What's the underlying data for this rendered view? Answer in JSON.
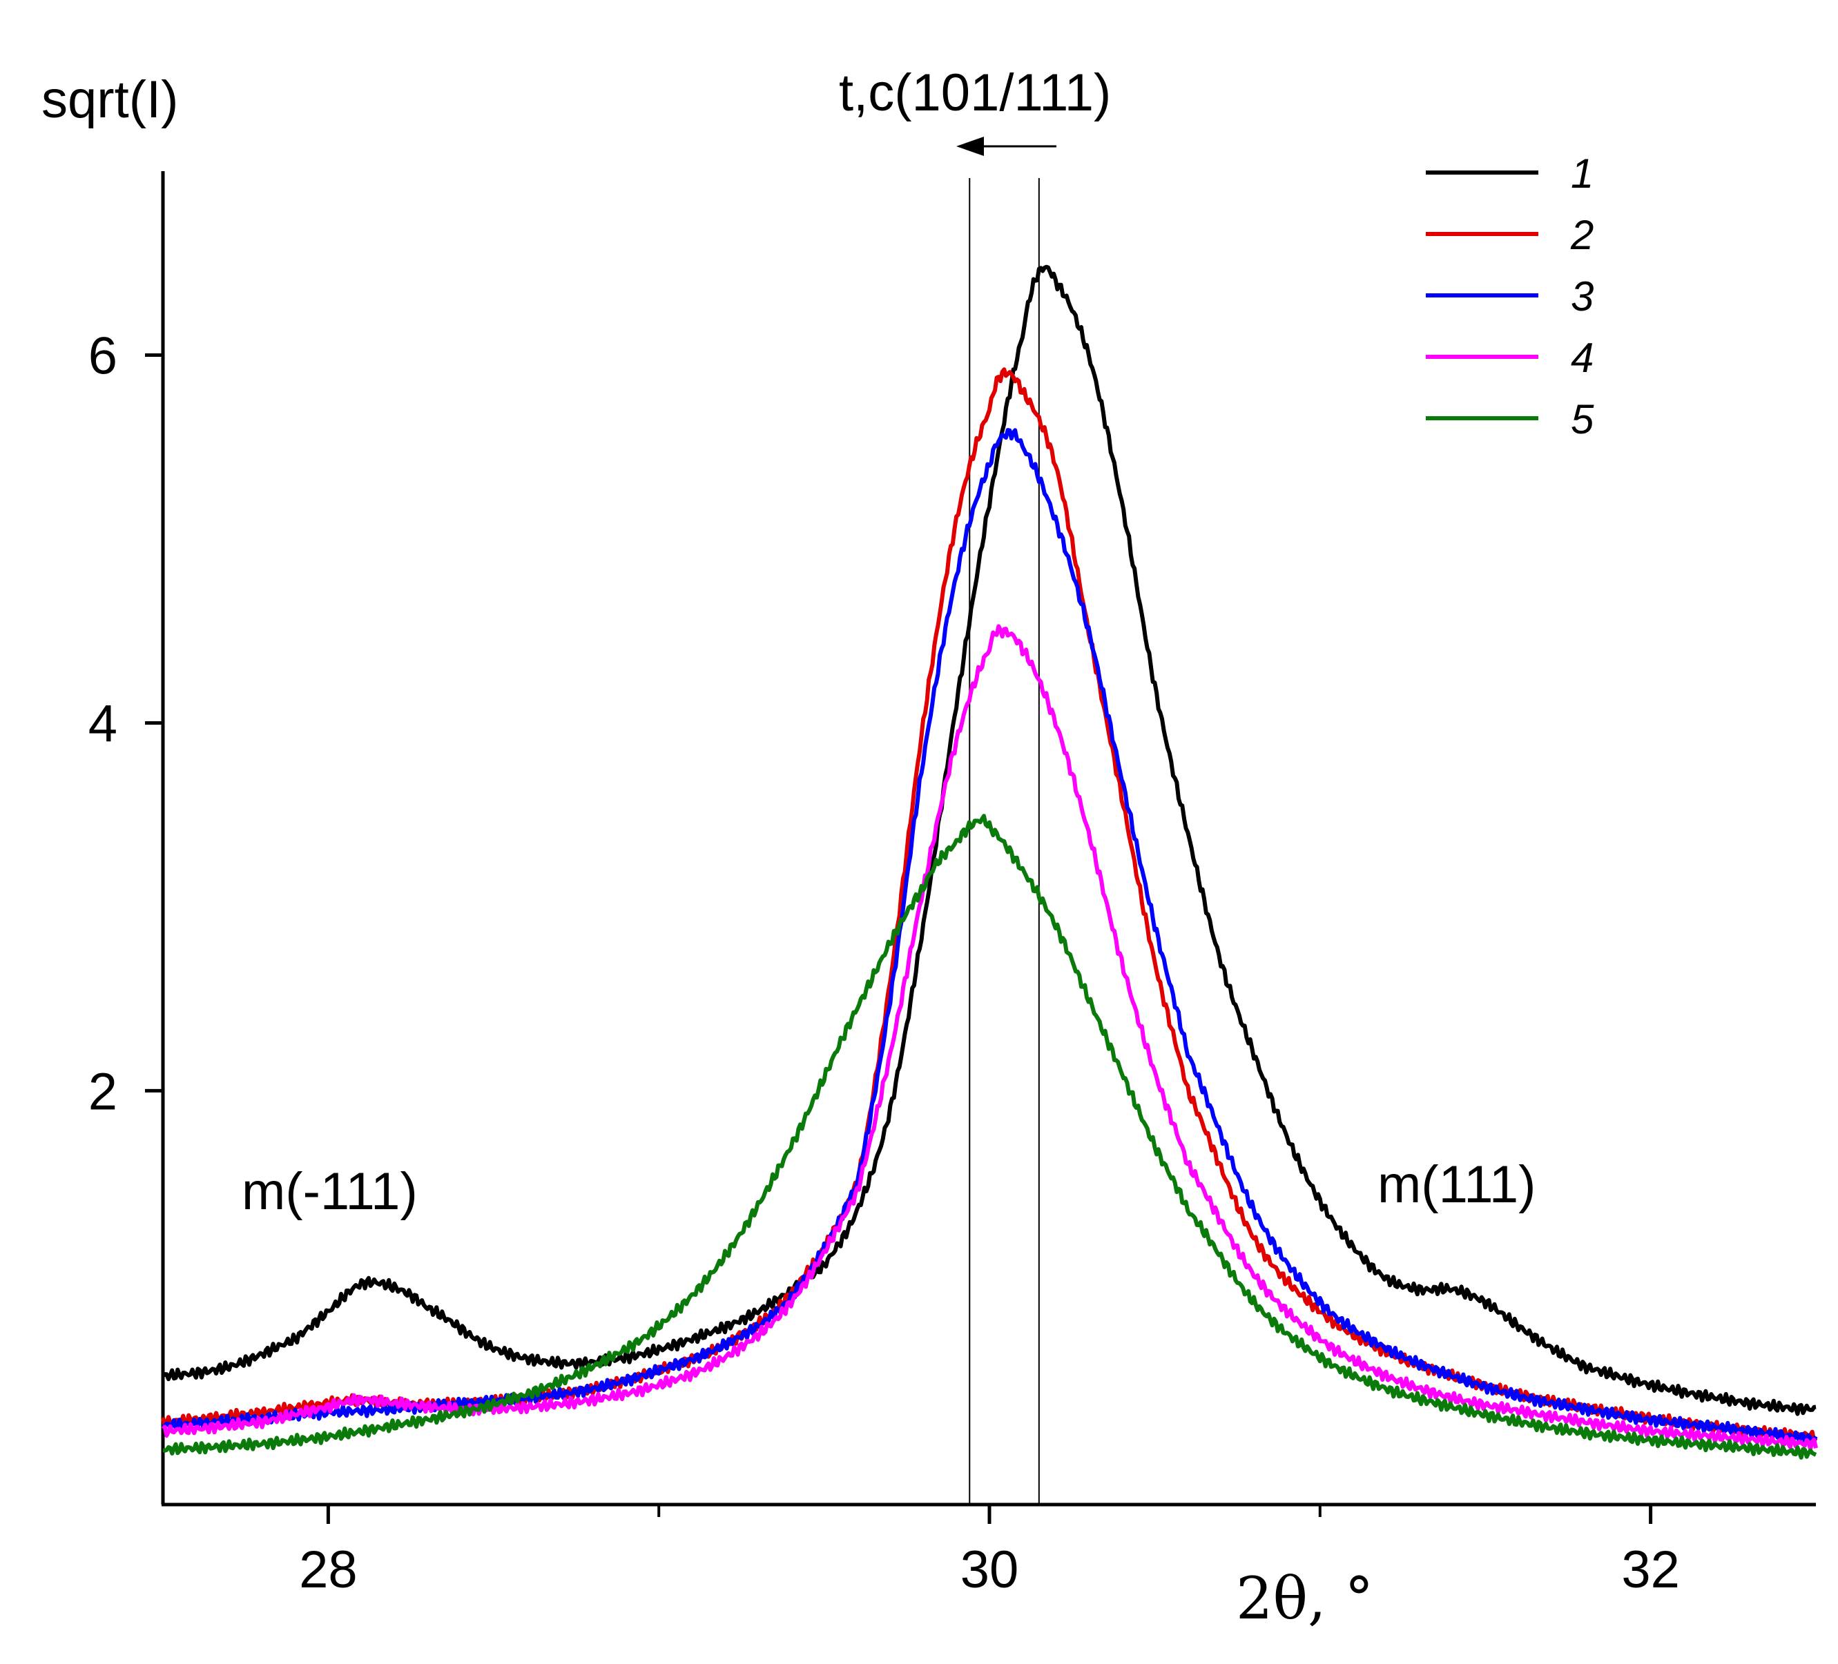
{
  "chart_data": {
    "type": "line",
    "title": "",
    "xlabel": "2θ, °",
    "ylabel": "sqrt(I)",
    "xlim": [
      27.5,
      32.5
    ],
    "ylim": [
      -0.25,
      7.0
    ],
    "xticks_major": [
      28,
      30,
      32
    ],
    "xticks_minor": [
      29,
      31
    ],
    "yticks": [
      2,
      4,
      6
    ],
    "grid": false,
    "legend_position": "top-right",
    "series": [
      {
        "name": "1",
        "color": "#000000",
        "peak_x": 30.15,
        "peak_y": 6.45,
        "x": [
          27.5,
          27.7,
          27.9,
          28.0,
          28.1,
          28.2,
          28.3,
          28.5,
          28.7,
          28.9,
          29.1,
          29.3,
          29.5,
          29.6,
          29.7,
          29.8,
          29.9,
          30.0,
          30.1,
          30.15,
          30.2,
          30.3,
          30.4,
          30.5,
          30.6,
          30.7,
          30.8,
          30.9,
          31.0,
          31.1,
          31.2,
          31.3,
          31.4,
          31.5,
          31.6,
          31.7,
          31.8,
          32.0,
          32.2,
          32.4,
          32.5
        ],
        "values": [
          0.45,
          0.5,
          0.65,
          0.8,
          0.95,
          0.93,
          0.82,
          0.6,
          0.52,
          0.55,
          0.65,
          0.8,
          1.05,
          1.35,
          1.9,
          2.9,
          4.1,
          5.2,
          6.1,
          6.45,
          6.4,
          6.0,
          5.2,
          4.2,
          3.4,
          2.7,
          2.2,
          1.75,
          1.4,
          1.15,
          0.98,
          0.92,
          0.92,
          0.85,
          0.72,
          0.6,
          0.5,
          0.4,
          0.33,
          0.28,
          0.27
        ]
      },
      {
        "name": "2",
        "color": "#e00000",
        "peak_x": 30.04,
        "peak_y": 5.9,
        "x": [
          27.5,
          27.8,
          28.0,
          28.1,
          28.2,
          28.4,
          28.6,
          28.8,
          29.0,
          29.2,
          29.4,
          29.6,
          29.7,
          29.8,
          29.9,
          30.0,
          30.04,
          30.1,
          30.2,
          30.3,
          30.4,
          30.5,
          30.6,
          30.8,
          31.0,
          31.2,
          31.4,
          31.6,
          31.8,
          32.0,
          32.2,
          32.5
        ],
        "values": [
          0.2,
          0.25,
          0.3,
          0.32,
          0.3,
          0.3,
          0.33,
          0.38,
          0.48,
          0.62,
          0.9,
          1.5,
          2.6,
          4.0,
          5.1,
          5.7,
          5.9,
          5.8,
          5.4,
          4.5,
          3.6,
          2.7,
          2.0,
          1.2,
          0.8,
          0.58,
          0.45,
          0.35,
          0.28,
          0.22,
          0.17,
          0.12
        ]
      },
      {
        "name": "3",
        "color": "#0000ff",
        "peak_x": 30.05,
        "peak_y": 5.57,
        "x": [
          27.5,
          27.8,
          28.0,
          28.2,
          28.4,
          28.6,
          28.8,
          29.0,
          29.2,
          29.4,
          29.6,
          29.7,
          29.8,
          29.9,
          30.0,
          30.05,
          30.1,
          30.2,
          30.3,
          30.4,
          30.5,
          30.6,
          30.8,
          31.0,
          31.2,
          31.4,
          31.6,
          31.8,
          32.0,
          32.2,
          32.5
        ],
        "values": [
          0.18,
          0.22,
          0.25,
          0.27,
          0.3,
          0.33,
          0.38,
          0.48,
          0.62,
          0.88,
          1.5,
          2.5,
          3.8,
          4.8,
          5.4,
          5.57,
          5.5,
          5.1,
          4.5,
          3.7,
          2.9,
          2.2,
          1.35,
          0.85,
          0.6,
          0.45,
          0.34,
          0.27,
          0.21,
          0.17,
          0.11
        ]
      },
      {
        "name": "4",
        "color": "#ff00ff",
        "peak_x": 30.03,
        "peak_y": 4.5,
        "x": [
          27.5,
          27.8,
          28.0,
          28.1,
          28.2,
          28.4,
          28.6,
          28.8,
          29.0,
          29.2,
          29.4,
          29.6,
          29.7,
          29.8,
          29.9,
          30.0,
          30.03,
          30.1,
          30.2,
          30.3,
          30.4,
          30.5,
          30.6,
          30.8,
          31.0,
          31.2,
          31.4,
          31.6,
          31.8,
          32.0,
          32.2,
          32.5
        ],
        "values": [
          0.15,
          0.2,
          0.28,
          0.32,
          0.3,
          0.27,
          0.28,
          0.32,
          0.4,
          0.55,
          0.85,
          1.45,
          2.2,
          3.1,
          3.9,
          4.4,
          4.5,
          4.4,
          4.0,
          3.4,
          2.7,
          2.1,
          1.6,
          1.0,
          0.65,
          0.45,
          0.33,
          0.26,
          0.2,
          0.15,
          0.12,
          0.08
        ]
      },
      {
        "name": "5",
        "color": "#0a7a0a",
        "peak_x": 29.97,
        "peak_y": 3.47,
        "x": [
          27.5,
          27.8,
          28.0,
          28.2,
          28.4,
          28.6,
          28.8,
          29.0,
          29.2,
          29.4,
          29.6,
          29.8,
          29.9,
          29.97,
          30.0,
          30.1,
          30.2,
          30.3,
          30.4,
          30.5,
          30.6,
          30.8,
          31.0,
          31.2,
          31.4,
          31.6,
          31.8,
          32.0,
          32.2,
          32.5
        ],
        "values": [
          0.05,
          0.08,
          0.12,
          0.18,
          0.25,
          0.35,
          0.5,
          0.72,
          1.1,
          1.7,
          2.45,
          3.1,
          3.35,
          3.47,
          3.43,
          3.2,
          2.9,
          2.5,
          2.1,
          1.7,
          1.35,
          0.85,
          0.55,
          0.38,
          0.28,
          0.2,
          0.14,
          0.1,
          0.07,
          0.03
        ]
      }
    ],
    "annotations": [
      {
        "text": "t,c(101/111)",
        "x": 30.0
      },
      {
        "text": "m(-111)",
        "x": 28.1
      },
      {
        "text": "m(111)",
        "x": 31.3
      }
    ],
    "reference_lines_x": [
      29.94,
      30.15
    ]
  }
}
